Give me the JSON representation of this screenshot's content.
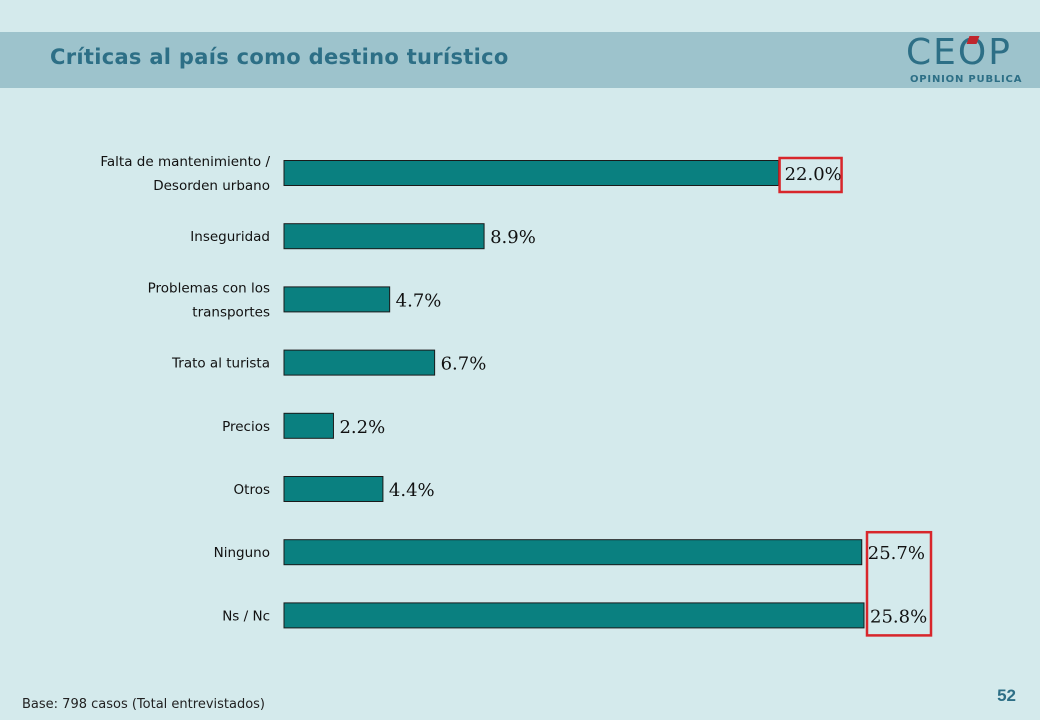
{
  "header": {
    "title": "Críticas al país como destino turístico"
  },
  "logo": {
    "main": "CEOP",
    "sub": "OPINION PUBLICA"
  },
  "footer": {
    "base": "Base: 798 casos (Total entrevistados)",
    "page_number": "52"
  },
  "colors": {
    "bar": "#0a8080",
    "highlight_box": "#d8262b",
    "title": "#2d6f86",
    "background": "#d4eaec",
    "header_band": "#9dc3cc"
  },
  "chart_data": {
    "type": "bar",
    "orientation": "horizontal",
    "title": "",
    "xlabel": "",
    "ylabel": "",
    "categories": [
      [
        "Falta de mantenimiento /",
        "Desorden urbano"
      ],
      [
        "Inseguridad"
      ],
      [
        "Problemas con los",
        "transportes"
      ],
      [
        "Trato al turista"
      ],
      [
        "Precios"
      ],
      [
        "Otros"
      ],
      [
        "Ninguno"
      ],
      [
        "Ns / Nc"
      ]
    ],
    "values": [
      22.0,
      8.9,
      4.7,
      6.7,
      2.2,
      4.4,
      25.7,
      25.8
    ],
    "value_labels": [
      "22.0%",
      "8.9%",
      "4.7%",
      "6.7%",
      "2.2%",
      "4.4%",
      "25.7%",
      "25.8%"
    ],
    "highlighted": [
      0,
      6,
      7
    ],
    "xlim": [
      0,
      26
    ],
    "grid": false,
    "legend": "none"
  }
}
